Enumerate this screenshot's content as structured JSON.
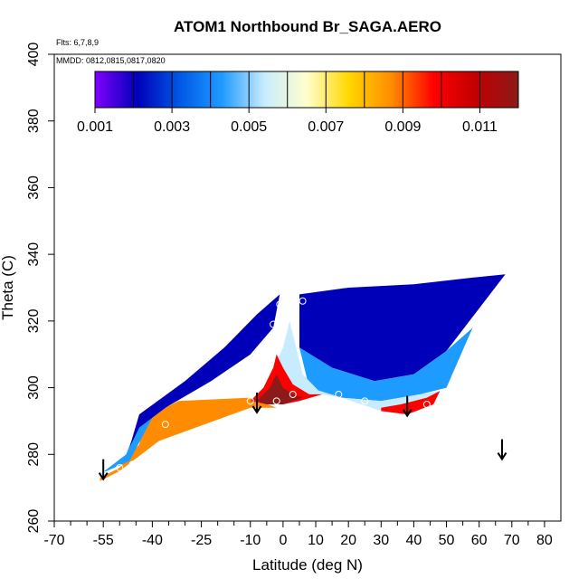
{
  "chart_data": {
    "type": "heatmap",
    "title": "ATOM1 Northbound Br_SAGA.AERO",
    "annotations": [
      "Flts: 6,7,8,9",
      "MMDD: 0812,0815,0817,0820"
    ],
    "xlabel": "Latitude (deg N)",
    "ylabel": "Theta (C)",
    "xlim": [
      -70,
      85
    ],
    "ylim": [
      260,
      400
    ],
    "x_ticks": [
      -70,
      -55,
      -40,
      -25,
      -10,
      0,
      10,
      20,
      30,
      40,
      50,
      60,
      70,
      80
    ],
    "x_tick_labels": [
      "-70",
      "-55",
      "-40",
      "-25",
      "-10",
      "0",
      "10",
      "20",
      "30",
      "40",
      "50",
      "60",
      "70",
      "80"
    ],
    "x_minor_ticks": [
      -65,
      -60,
      -50,
      -45,
      -35,
      -30,
      -20,
      -15,
      -5,
      5,
      15,
      25,
      35,
      45,
      55,
      65,
      75
    ],
    "y_ticks": [
      260,
      280,
      300,
      320,
      340,
      360,
      380,
      400
    ],
    "y_tick_labels": [
      "260",
      "280",
      "300",
      "320",
      "340",
      "360",
      "380",
      "400"
    ],
    "colorbar": {
      "range": [
        0.001,
        0.012
      ],
      "labeled_ticks": [
        "0.001",
        "0.003",
        "0.005",
        "0.007",
        "0.009",
        "0.011"
      ],
      "tick_values": [
        0.001,
        0.003,
        0.005,
        0.007,
        0.009,
        0.011
      ],
      "division_values": [
        0.002,
        0.003,
        0.004,
        0.005,
        0.006,
        0.007,
        0.008,
        0.009,
        0.01,
        0.011
      ],
      "palette": [
        "#8000ff",
        "#0000b8",
        "#0058e6",
        "#1e9bff",
        "#c8ecff",
        "#ffffcc",
        "#ffd700",
        "#ff8c00",
        "#ff0000",
        "#c00000",
        "#8b1a1a"
      ]
    },
    "sample_points": [
      {
        "x": -55,
        "y": 274
      },
      {
        "x": -50,
        "y": 276
      },
      {
        "x": -46,
        "y": 277
      },
      {
        "x": -36,
        "y": 289
      },
      {
        "x": -10,
        "y": 296
      },
      {
        "x": -2,
        "y": 296
      },
      {
        "x": 3,
        "y": 298
      },
      {
        "x": 17,
        "y": 298
      },
      {
        "x": 25,
        "y": 296
      },
      {
        "x": 44,
        "y": 295
      },
      {
        "x": -3,
        "y": 319
      },
      {
        "x": 3,
        "y": 322
      },
      {
        "x": -1,
        "y": 325
      },
      {
        "x": 6,
        "y": 326
      }
    ],
    "profile_markers": [
      {
        "x": -55,
        "y": 278
      },
      {
        "x": -8,
        "y": 298
      },
      {
        "x": 38,
        "y": 297
      },
      {
        "x": 67,
        "y": 284
      }
    ],
    "field_regions": [
      {
        "name": "southern-edge-band",
        "points": [
          [
            -56,
            273
          ],
          [
            -50,
            276
          ],
          [
            -44,
            283
          ],
          [
            -42,
            291
          ],
          [
            -32,
            296
          ],
          [
            -10,
            297
          ],
          [
            -2,
            294
          ],
          [
            -10,
            294
          ],
          [
            -38,
            284
          ],
          [
            -50,
            275
          ],
          [
            -56,
            272
          ]
        ],
        "value": 0.0085
      },
      {
        "name": "southern-low-layer",
        "points": [
          [
            -56,
            274
          ],
          [
            -48,
            280
          ],
          [
            -44,
            290
          ],
          [
            -30,
            301
          ],
          [
            -18,
            310
          ],
          [
            -8,
            318
          ],
          [
            -12,
            310
          ],
          [
            -25,
            302
          ],
          [
            -40,
            291
          ],
          [
            -47,
            278
          ],
          [
            -54,
            275
          ]
        ],
        "value": 0.0048
      },
      {
        "name": "southern-upper-layer",
        "points": [
          [
            -47,
            282
          ],
          [
            -44,
            292
          ],
          [
            -30,
            302
          ],
          [
            -18,
            312
          ],
          [
            -8,
            322
          ],
          [
            -1,
            328
          ],
          [
            -3,
            318
          ],
          [
            -10,
            310
          ],
          [
            -22,
            302
          ],
          [
            -36,
            294
          ],
          [
            -44,
            288
          ]
        ],
        "value": 0.0027
      },
      {
        "name": "northern-upper-layer",
        "points": [
          [
            5,
            328
          ],
          [
            20,
            330
          ],
          [
            40,
            331
          ],
          [
            58,
            333
          ],
          [
            68,
            334
          ],
          [
            50,
            311
          ],
          [
            40,
            304
          ],
          [
            28,
            302
          ],
          [
            15,
            306
          ],
          [
            5,
            312
          ]
        ],
        "value": 0.0025
      },
      {
        "name": "northern-mid-layer",
        "points": [
          [
            5,
            312
          ],
          [
            15,
            306
          ],
          [
            28,
            302
          ],
          [
            40,
            304
          ],
          [
            50,
            311
          ],
          [
            58,
            318
          ],
          [
            50,
            300
          ],
          [
            42,
            298
          ],
          [
            30,
            296
          ],
          [
            18,
            297
          ],
          [
            8,
            300
          ]
        ],
        "value": 0.0045
      },
      {
        "name": "northern-low-layer",
        "points": [
          [
            8,
            300
          ],
          [
            18,
            297
          ],
          [
            30,
            296
          ],
          [
            42,
            298
          ],
          [
            48,
            299
          ],
          [
            44,
            294
          ],
          [
            30,
            293
          ],
          [
            18,
            297
          ],
          [
            12,
            298
          ]
        ],
        "value": 0.0058
      },
      {
        "name": "tropical-cold-layer",
        "points": [
          [
            -10,
            296
          ],
          [
            -5,
            300
          ],
          [
            -3,
            306
          ],
          [
            0,
            312
          ],
          [
            2,
            320
          ],
          [
            4,
            312
          ],
          [
            6,
            304
          ],
          [
            10,
            300
          ],
          [
            12,
            298
          ],
          [
            5,
            296
          ],
          [
            0,
            295
          ],
          [
            -5,
            295
          ]
        ],
        "value": 0.0055
      },
      {
        "name": "tropical-core",
        "points": [
          [
            -10,
            296
          ],
          [
            -6,
            300
          ],
          [
            -3,
            306
          ],
          [
            -2,
            310
          ],
          [
            0,
            306
          ],
          [
            3,
            301
          ],
          [
            8,
            298
          ],
          [
            12,
            298
          ],
          [
            5,
            296
          ],
          [
            0,
            295
          ],
          [
            -5,
            295
          ]
        ],
        "value": 0.0095
      },
      {
        "name": "tropical-peak",
        "points": [
          [
            -8,
            296
          ],
          [
            -4,
            300
          ],
          [
            -2,
            304
          ],
          [
            0,
            300
          ],
          [
            3,
            298
          ],
          [
            6,
            297
          ],
          [
            0,
            295
          ],
          [
            -5,
            295
          ]
        ],
        "value": 0.0112
      },
      {
        "name": "northern-warm-band",
        "points": [
          [
            30,
            293
          ],
          [
            38,
            292
          ],
          [
            46,
            295
          ],
          [
            48,
            299
          ],
          [
            44,
            297
          ],
          [
            36,
            295
          ],
          [
            30,
            294
          ]
        ],
        "value": 0.009
      }
    ]
  }
}
